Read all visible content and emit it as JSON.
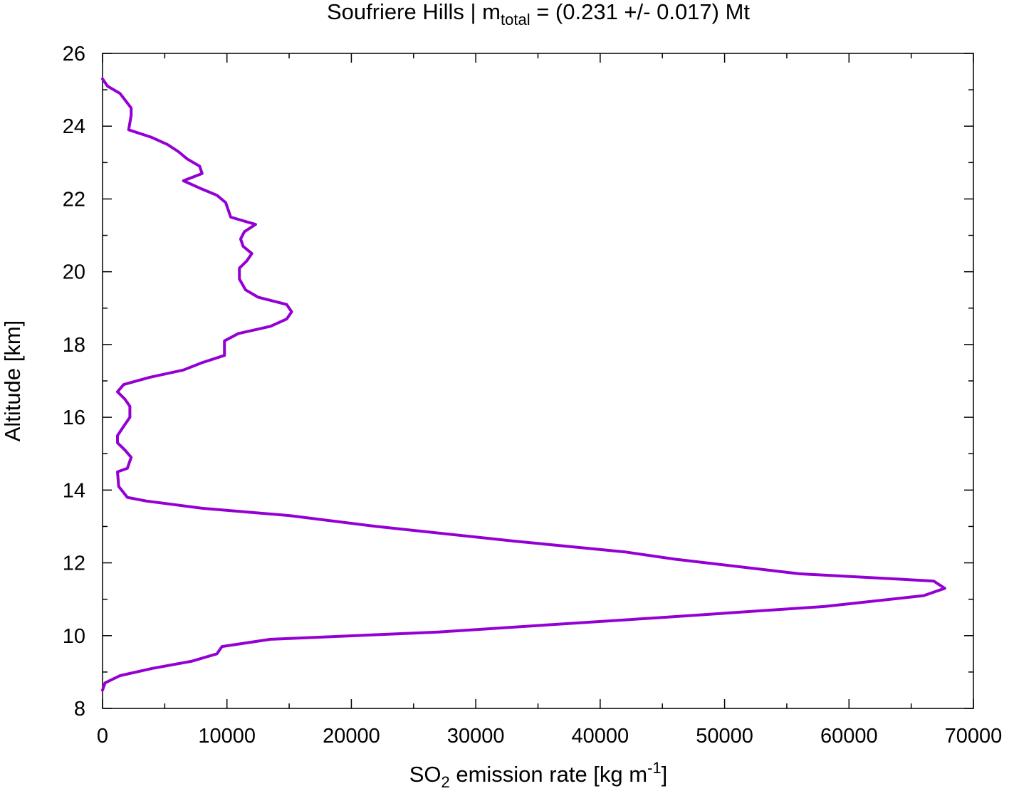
{
  "chart_data": {
    "type": "line",
    "title": {
      "prefix": "Soufriere Hills | m",
      "sub": "total",
      "suffix": " = (0.231 +/- 0.017) Mt"
    },
    "xlabel": {
      "a": "SO",
      "sub": "2",
      "b": " emission rate [kg m",
      "sup": "-1",
      "c": "]"
    },
    "ylabel": "Altitude [km]",
    "xlim": [
      0,
      70000
    ],
    "ylim": [
      8,
      26
    ],
    "xticks": [
      0,
      10000,
      20000,
      30000,
      40000,
      50000,
      60000,
      70000
    ],
    "xtick_labels": [
      "0",
      "10000",
      "20000",
      "30000",
      "40000",
      "50000",
      "60000",
      "70000"
    ],
    "yticks": [
      8,
      10,
      12,
      14,
      16,
      18,
      20,
      22,
      24,
      26
    ],
    "ytick_labels": [
      "8",
      "10",
      "12",
      "14",
      "16",
      "18",
      "20",
      "22",
      "24",
      "26"
    ],
    "grid": false,
    "legend": false,
    "series": [
      {
        "color": "#9400d3",
        "points": [
          [
            0,
            8.5
          ],
          [
            200,
            8.7
          ],
          [
            1400,
            8.9
          ],
          [
            4000,
            9.1
          ],
          [
            7200,
            9.3
          ],
          [
            9200,
            9.5
          ],
          [
            9600,
            9.7
          ],
          [
            13500,
            9.9
          ],
          [
            27000,
            10.1
          ],
          [
            45000,
            10.5
          ],
          [
            58000,
            10.8
          ],
          [
            66000,
            11.1
          ],
          [
            67700,
            11.3
          ],
          [
            66800,
            11.5
          ],
          [
            56000,
            11.7
          ],
          [
            46000,
            12.1
          ],
          [
            42000,
            12.3
          ],
          [
            33000,
            12.6
          ],
          [
            22000,
            13.0
          ],
          [
            15000,
            13.3
          ],
          [
            8000,
            13.5
          ],
          [
            3500,
            13.7
          ],
          [
            2000,
            13.8
          ],
          [
            1300,
            14.1
          ],
          [
            1200,
            14.5
          ],
          [
            2000,
            14.6
          ],
          [
            2300,
            14.9
          ],
          [
            1800,
            15.1
          ],
          [
            1200,
            15.3
          ],
          [
            1200,
            15.5
          ],
          [
            1800,
            15.8
          ],
          [
            2200,
            16.0
          ],
          [
            2200,
            16.3
          ],
          [
            1800,
            16.5
          ],
          [
            1200,
            16.7
          ],
          [
            1700,
            16.9
          ],
          [
            3800,
            17.1
          ],
          [
            6500,
            17.3
          ],
          [
            8000,
            17.5
          ],
          [
            9800,
            17.7
          ],
          [
            9800,
            18.1
          ],
          [
            10900,
            18.3
          ],
          [
            13500,
            18.5
          ],
          [
            14800,
            18.7
          ],
          [
            15200,
            18.9
          ],
          [
            14800,
            19.1
          ],
          [
            12500,
            19.3
          ],
          [
            11500,
            19.5
          ],
          [
            11000,
            19.8
          ],
          [
            11000,
            20.1
          ],
          [
            11600,
            20.3
          ],
          [
            12000,
            20.5
          ],
          [
            11300,
            20.7
          ],
          [
            11100,
            20.9
          ],
          [
            11400,
            21.1
          ],
          [
            12300,
            21.3
          ],
          [
            10300,
            21.5
          ],
          [
            9900,
            21.9
          ],
          [
            9200,
            22.1
          ],
          [
            7800,
            22.3
          ],
          [
            6500,
            22.5
          ],
          [
            8000,
            22.7
          ],
          [
            7800,
            22.9
          ],
          [
            6800,
            23.1
          ],
          [
            6100,
            23.3
          ],
          [
            5200,
            23.5
          ],
          [
            3900,
            23.7
          ],
          [
            2100,
            23.9
          ],
          [
            2300,
            24.3
          ],
          [
            2300,
            24.5
          ],
          [
            1400,
            24.9
          ],
          [
            400,
            25.1
          ],
          [
            0,
            25.3
          ]
        ]
      }
    ]
  }
}
